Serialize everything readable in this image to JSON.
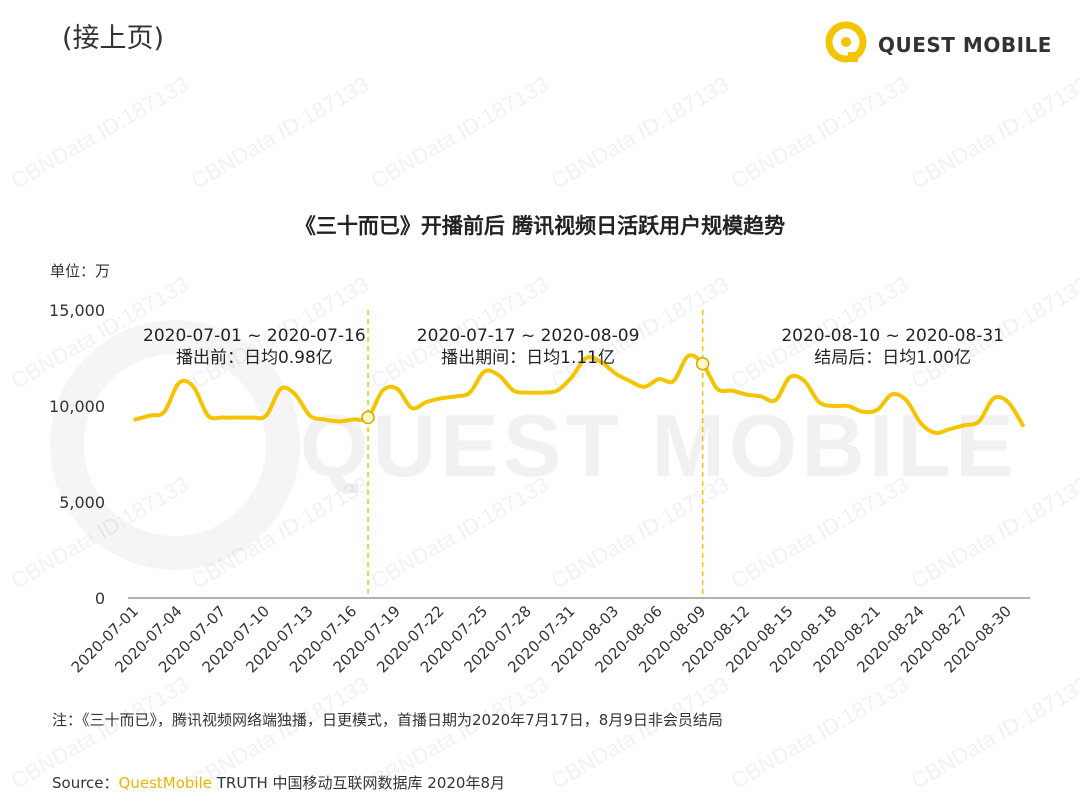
{
  "header": {
    "continued": "(接上页)",
    "brand": "QUEST MOBILE"
  },
  "watermark": {
    "text": "CBNData ID:187133",
    "background": "QUEST MOBILE"
  },
  "chart_data": {
    "type": "line",
    "title": "《三十而已》开播前后 腾讯视频日活跃用户规模趋势",
    "unit": "单位：万",
    "ylim": [
      0,
      15000
    ],
    "yticks": [
      "0",
      "5,000",
      "10,000",
      "15,000"
    ],
    "ytick_values": [
      0,
      5000,
      10000,
      15000
    ],
    "xtick_labels": [
      "2020-07-01",
      "2020-07-04",
      "2020-07-07",
      "2020-07-10",
      "2020-07-13",
      "2020-07-16",
      "2020-07-19",
      "2020-07-22",
      "2020-07-25",
      "2020-07-28",
      "2020-07-31",
      "2020-08-03",
      "2020-08-06",
      "2020-08-09",
      "2020-08-12",
      "2020-08-15",
      "2020-08-18",
      "2020-08-21",
      "2020-08-24",
      "2020-08-27",
      "2020-08-30"
    ],
    "x": [
      "2020-07-01",
      "2020-07-02",
      "2020-07-03",
      "2020-07-04",
      "2020-07-05",
      "2020-07-06",
      "2020-07-07",
      "2020-07-08",
      "2020-07-09",
      "2020-07-10",
      "2020-07-11",
      "2020-07-12",
      "2020-07-13",
      "2020-07-14",
      "2020-07-15",
      "2020-07-16",
      "2020-07-17",
      "2020-07-18",
      "2020-07-19",
      "2020-07-20",
      "2020-07-21",
      "2020-07-22",
      "2020-07-23",
      "2020-07-24",
      "2020-07-25",
      "2020-07-26",
      "2020-07-27",
      "2020-07-28",
      "2020-07-29",
      "2020-07-30",
      "2020-07-31",
      "2020-08-01",
      "2020-08-02",
      "2020-08-03",
      "2020-08-04",
      "2020-08-05",
      "2020-08-06",
      "2020-08-07",
      "2020-08-08",
      "2020-08-09",
      "2020-08-10",
      "2020-08-11",
      "2020-08-12",
      "2020-08-13",
      "2020-08-14",
      "2020-08-15",
      "2020-08-16",
      "2020-08-17",
      "2020-08-18",
      "2020-08-19",
      "2020-08-20",
      "2020-08-21",
      "2020-08-22",
      "2020-08-23",
      "2020-08-24",
      "2020-08-25",
      "2020-08-26",
      "2020-08-27",
      "2020-08-28",
      "2020-08-29",
      "2020-08-30",
      "2020-08-31"
    ],
    "series": [
      {
        "name": "",
        "color": "#f5c400",
        "values": [
          9300,
          9500,
          9700,
          11200,
          11000,
          9500,
          9400,
          9400,
          9400,
          9500,
          10900,
          10600,
          9500,
          9300,
          9200,
          9300,
          9400,
          10800,
          10900,
          9900,
          10200,
          10400,
          10500,
          10700,
          11800,
          11600,
          10800,
          10700,
          10700,
          10800,
          11500,
          12500,
          12300,
          11700,
          11300,
          11000,
          11400,
          11300,
          12600,
          12200,
          10900,
          10800,
          10600,
          10500,
          10300,
          11500,
          11300,
          10200,
          10000,
          10000,
          9700,
          9800,
          10600,
          10300,
          9100,
          8600,
          8800,
          9000,
          9200,
          10400,
          10200,
          9000
        ]
      }
    ],
    "markers": [
      "2020-07-17",
      "2020-08-09"
    ],
    "dividers": [
      "2020-07-17",
      "2020-08-09"
    ],
    "annotations": [
      {
        "line1": "2020-07-01 ~ 2020-07-16",
        "line2": "播出前：日均0.98亿"
      },
      {
        "line1": "2020-07-17 ~ 2020-08-09",
        "line2": "播出期间：日均1.11亿"
      },
      {
        "line1": "2020-08-10 ~ 2020-08-31",
        "line2": "结局后：日均1.00亿"
      }
    ]
  },
  "footer": {
    "note": "注：《三十而已》，腾讯视频网络端独播，日更模式，首播日期为2020年7月17日，8月9日非会员结局",
    "source_prefix": "Source：",
    "source_brand": "QuestMobile",
    "source_rest": " TRUTH 中国移动互联网数据库 2020年8月"
  }
}
